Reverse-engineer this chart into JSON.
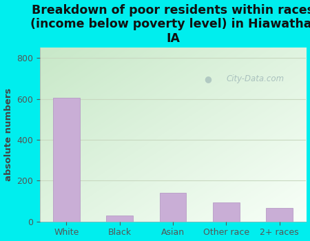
{
  "categories": [
    "White",
    "Black",
    "Asian",
    "Other race",
    "2+ races"
  ],
  "values": [
    605,
    30,
    140,
    95,
    65
  ],
  "bar_color": "#c9aed6",
  "bar_edge_color": "#b090c0",
  "background_color": "#00eeee",
  "plot_bg_gradient_tl": "#c8e8c8",
  "plot_bg_gradient_br": "#f5fff5",
  "title": "Breakdown of poor residents within races\n(income below poverty level) in Hiawatha,\nIA",
  "title_fontsize": 12.5,
  "title_fontweight": "bold",
  "title_color": "#111111",
  "ylabel": "absolute numbers",
  "ylabel_fontsize": 9.5,
  "ylabel_fontweight": "bold",
  "ylabel_color": "#444444",
  "ylim": [
    0,
    850
  ],
  "yticks": [
    0,
    200,
    400,
    600,
    800
  ],
  "tick_fontsize": 9,
  "tick_color": "#555555",
  "watermark": "City-Data.com",
  "watermark_color": "#a0b8b8",
  "grid_color": "#c8d8c0",
  "figsize": [
    4.5,
    3.5
  ],
  "dpi": 100
}
